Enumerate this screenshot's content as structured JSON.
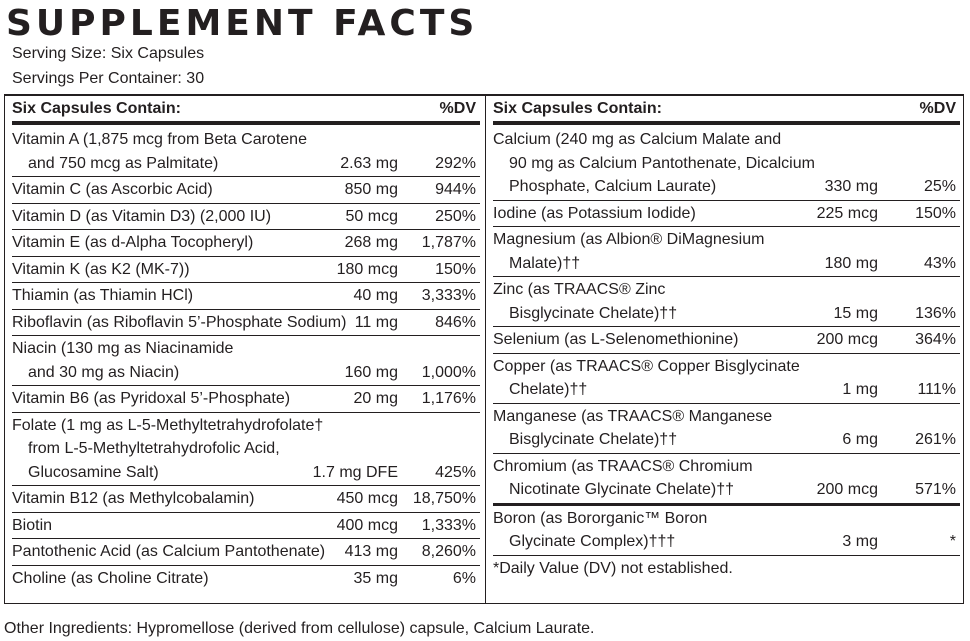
{
  "title": "SUPPLEMENT FACTS",
  "serving_size": "Serving Size: Six Capsules",
  "servings_per_container": "Servings Per Container: 30",
  "left": {
    "header": "Six Capsules Contain:",
    "dv_header": "%DV",
    "rows": [
      {
        "lines": [
          "Vitamin A (1,875 mcg from Beta Carotene",
          "and 750 mcg as Palmitate)"
        ],
        "amount": "2.63 mg",
        "dv": "292%"
      },
      {
        "lines": [
          "Vitamin C (as Ascorbic Acid)"
        ],
        "amount": "850 mg",
        "dv": "944%"
      },
      {
        "lines": [
          "Vitamin D (as Vitamin D3) (2,000 IU)"
        ],
        "amount": "50 mcg",
        "dv": "250%"
      },
      {
        "lines": [
          "Vitamin E (as d-Alpha Tocopheryl)"
        ],
        "amount": "268 mg",
        "dv": "1,787%"
      },
      {
        "lines": [
          "Vitamin K (as K2 (MK-7))"
        ],
        "amount": "180 mcg",
        "dv": "150%"
      },
      {
        "lines": [
          "Thiamin (as Thiamin HCl)"
        ],
        "amount": "40 mg",
        "dv": "3,333%"
      },
      {
        "lines": [
          "Riboflavin (as Riboflavin 5’-Phosphate Sodium)"
        ],
        "amount": "11 mg",
        "dv": "846%"
      },
      {
        "lines": [
          "Niacin (130 mg as Niacinamide",
          "and 30 mg as Niacin)"
        ],
        "amount": "160 mg",
        "dv": "1,000%"
      },
      {
        "lines": [
          "Vitamin B6 (as Pyridoxal 5’-Phosphate)"
        ],
        "amount": "20 mg",
        "dv": "1,176%"
      },
      {
        "lines": [
          "Folate (1 mg as L-5-Methyltetrahydrofolate†",
          "from L-5-Methyltetrahydrofolic Acid,",
          "Glucosamine Salt)"
        ],
        "amount": "1.7 mg DFE",
        "dv": "425%"
      },
      {
        "lines": [
          "Vitamin B12 (as Methylcobalamin)"
        ],
        "amount": "450 mcg",
        "dv": "18,750%"
      },
      {
        "lines": [
          "Biotin"
        ],
        "amount": "400 mcg",
        "dv": "1,333%"
      },
      {
        "lines": [
          "Pantothenic Acid (as Calcium Pantothenate)"
        ],
        "amount": "413 mg",
        "dv": "8,260%"
      },
      {
        "lines": [
          "Choline (as Choline Citrate)"
        ],
        "amount": "35 mg",
        "dv": "6%"
      }
    ]
  },
  "right": {
    "header": "Six Capsules Contain:",
    "dv_header": "%DV",
    "rows": [
      {
        "lines": [
          "Calcium (240 mg as Calcium Malate and",
          "90 mg as Calcium Pantothenate, Dicalcium",
          "Phosphate, Calcium Laurate)"
        ],
        "amount": "330 mg",
        "dv": "25%"
      },
      {
        "lines": [
          "Iodine (as Potassium Iodide)"
        ],
        "amount": "225 mcg",
        "dv": "150%"
      },
      {
        "lines": [
          "Magnesium (as Albion® DiMagnesium",
          "Malate)††"
        ],
        "amount": "180 mg",
        "dv": "43%"
      },
      {
        "lines": [
          "Zinc (as TRAACS® Zinc",
          "Bisglycinate Chelate)††"
        ],
        "amount": "15 mg",
        "dv": "136%"
      },
      {
        "lines": [
          "Selenium (as L-Selenomethionine)"
        ],
        "amount": "200 mcg",
        "dv": "364%"
      },
      {
        "lines": [
          "Copper (as TRAACS® Copper Bisglycinate",
          "Chelate)††"
        ],
        "amount": "1 mg",
        "dv": "111%"
      },
      {
        "lines": [
          "Manganese (as TRAACS® Manganese",
          "Bisglycinate Chelate)††"
        ],
        "amount": "6 mg",
        "dv": "261%"
      },
      {
        "lines": [
          "Chromium (as TRAACS® Chromium",
          "Nicotinate Glycinate Chelate)††"
        ],
        "amount": "200 mcg",
        "dv": "571%"
      },
      {
        "lines": [
          "Boron (as Bororganic™ Boron",
          "Glycinate Complex)†††"
        ],
        "amount": "3 mg",
        "dv": "*"
      }
    ],
    "footnote": "*Daily Value (DV) not established."
  },
  "other_ingredients": "Other Ingredients: Hypromellose (derived from cellulose) capsule, Calcium Laurate."
}
